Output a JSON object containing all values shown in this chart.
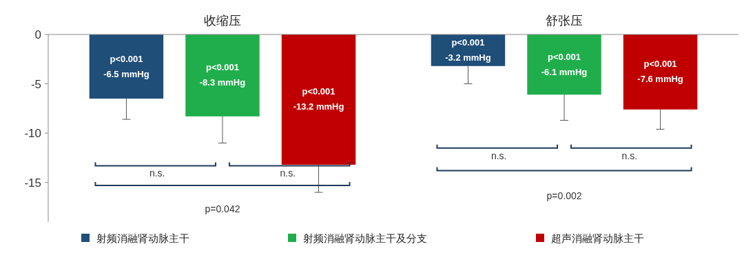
{
  "chart_data": {
    "type": "bar",
    "categories": [
      "收缩压",
      "舒张压"
    ],
    "series": [
      {
        "name": "射频消融肾动脉主干",
        "color": "#1f4e79",
        "values": [
          -6.5,
          -3.2
        ],
        "errors": [
          [
            -8.6,
            -6.5
          ],
          [
            -5.0,
            -3.2
          ]
        ],
        "value_labels": [
          "p<0.001\n-6.5 mmHg",
          "p<0.001\n-3.2 mmHg"
        ]
      },
      {
        "name": "射频消融肾动脉主干及分支",
        "color": "#1fae4b",
        "values": [
          -8.3,
          -6.1
        ],
        "errors": [
          [
            -11.0,
            -8.3
          ],
          [
            -8.7,
            -6.1
          ]
        ],
        "value_labels": [
          "p<0.001\n-8.3 mmHg",
          "p<0.001\n-6.1 mmHg"
        ]
      },
      {
        "name": "超声消融肾动脉主干",
        "color": "#c00000",
        "values": [
          -13.2,
          -7.6
        ],
        "errors": [
          [
            -16.0,
            -13.2
          ],
          [
            -9.6,
            -7.6
          ]
        ],
        "value_labels": [
          "p<0.001\n-13.2 mmHg",
          "p<0.001\n-7.6 mmHg"
        ]
      }
    ],
    "annotations": [
      "n.s.",
      "n.s.",
      "p=0.042",
      "n.s.",
      "n.s.",
      "p=0.002"
    ],
    "ylim": [
      -19,
      0
    ],
    "yticks": [
      0,
      -5,
      -10,
      -15
    ],
    "grid": false,
    "legend": "bottom"
  }
}
